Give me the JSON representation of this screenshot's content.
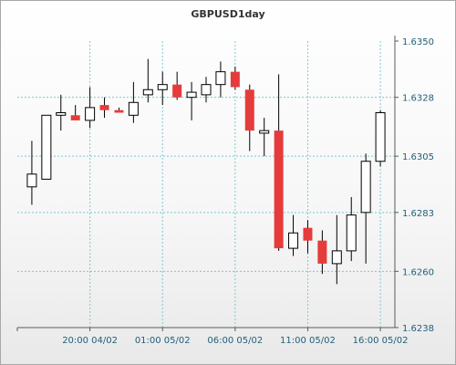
{
  "chart_data": {
    "type": "candlestick",
    "title": "GBPUSD1day",
    "colors": {
      "up_fill": "#ffffff",
      "down_fill": "#e63b3b",
      "candle_outline": "#000000",
      "grid": "#7ec8d3",
      "axis": "#5a5a5a",
      "tick_label": "#1d5f77",
      "title": "#333333"
    },
    "grid": true,
    "y_axis": {
      "position": "right",
      "range": [
        1.6238,
        1.635
      ],
      "ticks": [
        "1.6238",
        "1.6260",
        "1.6283",
        "1.6305",
        "1.6328",
        "1.6350"
      ]
    },
    "x_axis": {
      "ticks": [
        {
          "label": "20:00 04/02",
          "candle_index": 4
        },
        {
          "label": "01:00 05/02",
          "candle_index": 9
        },
        {
          "label": "06:00 05/02",
          "candle_index": 14
        },
        {
          "label": "11:00 05/02",
          "candle_index": 19
        },
        {
          "label": "16:00 05/02",
          "candle_index": 24
        }
      ]
    },
    "candles": [
      {
        "open": 1.6293,
        "high": 1.6311,
        "low": 1.6286,
        "close": 1.6298
      },
      {
        "open": 1.6296,
        "high": 1.6321,
        "low": 1.6296,
        "close": 1.6321
      },
      {
        "open": 1.6321,
        "high": 1.6329,
        "low": 1.6315,
        "close": 1.6322
      },
      {
        "open": 1.6321,
        "high": 1.6325,
        "low": 1.6319,
        "close": 1.6319
      },
      {
        "open": 1.6319,
        "high": 1.6332,
        "low": 1.6316,
        "close": 1.6324
      },
      {
        "open": 1.6325,
        "high": 1.6328,
        "low": 1.632,
        "close": 1.6323
      },
      {
        "open": 1.6323,
        "high": 1.6324,
        "low": 1.6322,
        "close": 1.6322
      },
      {
        "open": 1.6321,
        "high": 1.6334,
        "low": 1.6318,
        "close": 1.6326
      },
      {
        "open": 1.6329,
        "high": 1.6343,
        "low": 1.6326,
        "close": 1.6331
      },
      {
        "open": 1.6331,
        "high": 1.6338,
        "low": 1.6325,
        "close": 1.6333
      },
      {
        "open": 1.6333,
        "high": 1.6338,
        "low": 1.6327,
        "close": 1.6328
      },
      {
        "open": 1.6328,
        "high": 1.6334,
        "low": 1.6319,
        "close": 1.633
      },
      {
        "open": 1.6329,
        "high": 1.6336,
        "low": 1.6326,
        "close": 1.6333
      },
      {
        "open": 1.6333,
        "high": 1.6342,
        "low": 1.6328,
        "close": 1.6338
      },
      {
        "open": 1.6338,
        "high": 1.634,
        "low": 1.6331,
        "close": 1.6332
      },
      {
        "open": 1.6331,
        "high": 1.6333,
        "low": 1.6307,
        "close": 1.6315
      },
      {
        "open": 1.6314,
        "high": 1.632,
        "low": 1.6305,
        "close": 1.6315
      },
      {
        "open": 1.6315,
        "high": 1.6337,
        "low": 1.6268,
        "close": 1.6269
      },
      {
        "open": 1.6269,
        "high": 1.6282,
        "low": 1.6266,
        "close": 1.6275
      },
      {
        "open": 1.6277,
        "high": 1.628,
        "low": 1.6267,
        "close": 1.6272
      },
      {
        "open": 1.6272,
        "high": 1.6276,
        "low": 1.6259,
        "close": 1.6263
      },
      {
        "open": 1.6263,
        "high": 1.6282,
        "low": 1.6255,
        "close": 1.6268
      },
      {
        "open": 1.6268,
        "high": 1.6289,
        "low": 1.6264,
        "close": 1.6282
      },
      {
        "open": 1.6283,
        "high": 1.6306,
        "low": 1.6263,
        "close": 1.6303
      },
      {
        "open": 1.6303,
        "high": 1.6323,
        "low": 1.6301,
        "close": 1.6322
      }
    ]
  }
}
